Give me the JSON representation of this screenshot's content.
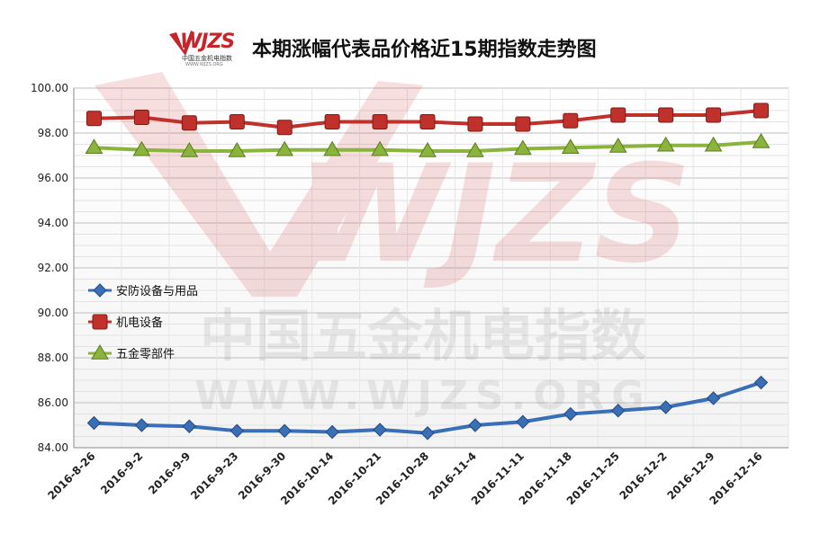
{
  "logo": {
    "mark": "WJZS",
    "name": "中国五金机电指数",
    "url": "WWW.WJZS.ORG"
  },
  "watermark": {
    "mark": "WJZS",
    "name": "中国五金机电指数",
    "url": "WWW.WJZS.ORG"
  },
  "chart_data": {
    "type": "line",
    "title": "本期涨幅代表品价格近15期指数走势图",
    "xlabel": "",
    "ylabel": "",
    "categories": [
      "2016-8-26",
      "2016-9-2",
      "2016-9-9",
      "2016-9-23",
      "2016-9-30",
      "2016-10-14",
      "2016-10-21",
      "2016-10-28",
      "2016-11-4",
      "2016-11-11",
      "2016-11-18",
      "2016-11-25",
      "2016-12-2",
      "2016-12-9",
      "2016-12-16"
    ],
    "ylim": [
      84,
      100
    ],
    "yticks": [
      "84.00",
      "86.00",
      "88.00",
      "90.00",
      "92.00",
      "94.00",
      "96.00",
      "98.00",
      "100.00"
    ],
    "grid": true,
    "legend_position": "left-middle",
    "series": [
      {
        "name": "安防设备与用品",
        "color": "#3a6fb7",
        "marker": "diamond",
        "values": [
          85.1,
          85.0,
          84.95,
          84.75,
          84.75,
          84.7,
          84.8,
          84.65,
          85.0,
          85.15,
          85.5,
          85.65,
          85.8,
          86.2,
          86.9
        ]
      },
      {
        "name": "机电设备",
        "color": "#c0312b",
        "marker": "square",
        "values": [
          98.65,
          98.7,
          98.45,
          98.5,
          98.25,
          98.5,
          98.5,
          98.5,
          98.4,
          98.4,
          98.55,
          98.8,
          98.8,
          98.8,
          99.0
        ]
      },
      {
        "name": "五金零部件",
        "color": "#8ab43b",
        "marker": "triangle",
        "values": [
          97.35,
          97.25,
          97.2,
          97.2,
          97.25,
          97.25,
          97.25,
          97.2,
          97.2,
          97.3,
          97.35,
          97.4,
          97.45,
          97.45,
          97.6
        ]
      }
    ]
  }
}
